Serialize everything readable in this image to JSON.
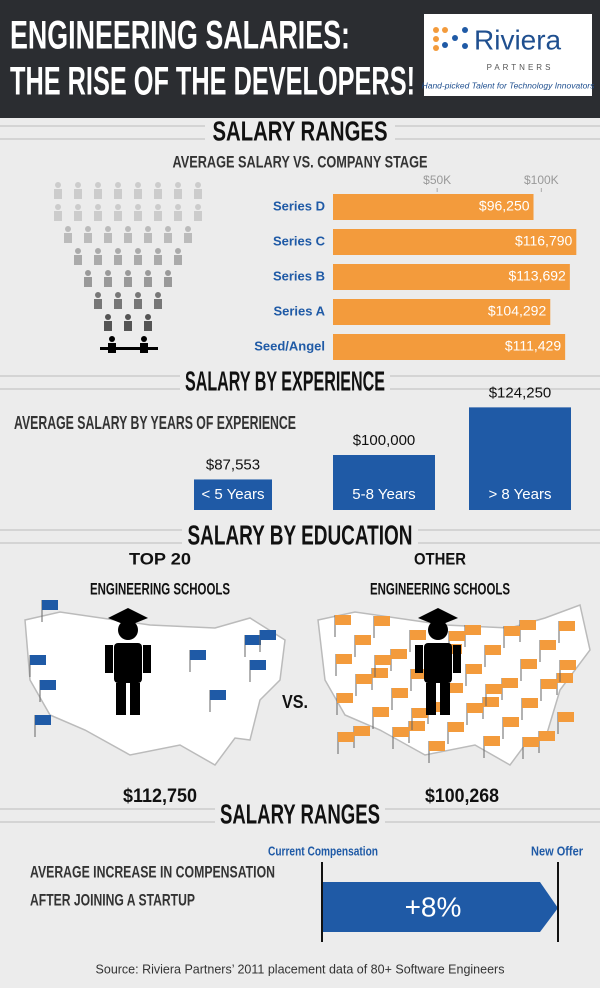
{
  "header": {
    "title_line1": "ENGINEERING SALARIES:",
    "title_line2": "THE RISE OF THE DEVELOPERS!",
    "logo_name": "Riviera",
    "logo_sub": "PARTNERS",
    "logo_tagline": "Hand-picked Talent for Technology Innovators"
  },
  "chart_data": [
    {
      "type": "hbar",
      "title": "SALARY RANGES",
      "subtitle": "AVERAGE SALARY VS. COMPANY STAGE",
      "categories": [
        "Series D",
        "Series C",
        "Series B",
        "Series A",
        "Seed/Angel"
      ],
      "values": [
        96250,
        116790,
        113692,
        104292,
        111429
      ],
      "value_labels": [
        "$96,250",
        "$116,790",
        "$113,692",
        "$104,292",
        "$111,429"
      ],
      "color": "#f39b3c",
      "xlim": [
        0,
        120000
      ],
      "xticks": [
        {
          "value": 50000,
          "label": "$50K"
        },
        {
          "value": 100000,
          "label": "$100K"
        }
      ]
    },
    {
      "type": "bar",
      "title": "SALARY BY EXPERIENCE",
      "subtitle": "AVERAGE SALARY BY YEARS OF EXPERIENCE",
      "categories": [
        "< 5 Years",
        "5-8 Years",
        "> 8 Years"
      ],
      "values": [
        87553,
        100000,
        124250
      ],
      "value_labels": [
        "$87,553",
        "$100,000",
        "$124,250"
      ],
      "color": "#1f5aa6",
      "ylim": [
        72000,
        128000
      ]
    }
  ],
  "education": {
    "title": "SALARY BY EDUCATION",
    "left_line1": "TOP 20",
    "left_line2": "ENGINEERING SCHOOLS",
    "left_value": "$112,750",
    "vs": "VS.",
    "right_line1": "OTHER",
    "right_line2": "ENGINEERING SCHOOLS",
    "right_value": "$100,268"
  },
  "compensation": {
    "title": "SALARY RANGES",
    "line1": "AVERAGE INCREASE IN COMPENSATION",
    "line2": "AFTER JOINING A STARTUP",
    "start_label": "Current Compensation",
    "end_label": "New Offer",
    "increase": "+8%"
  },
  "source": "Source: Riviera Partners’ 2011 placement data of 80+ Software Engineers"
}
